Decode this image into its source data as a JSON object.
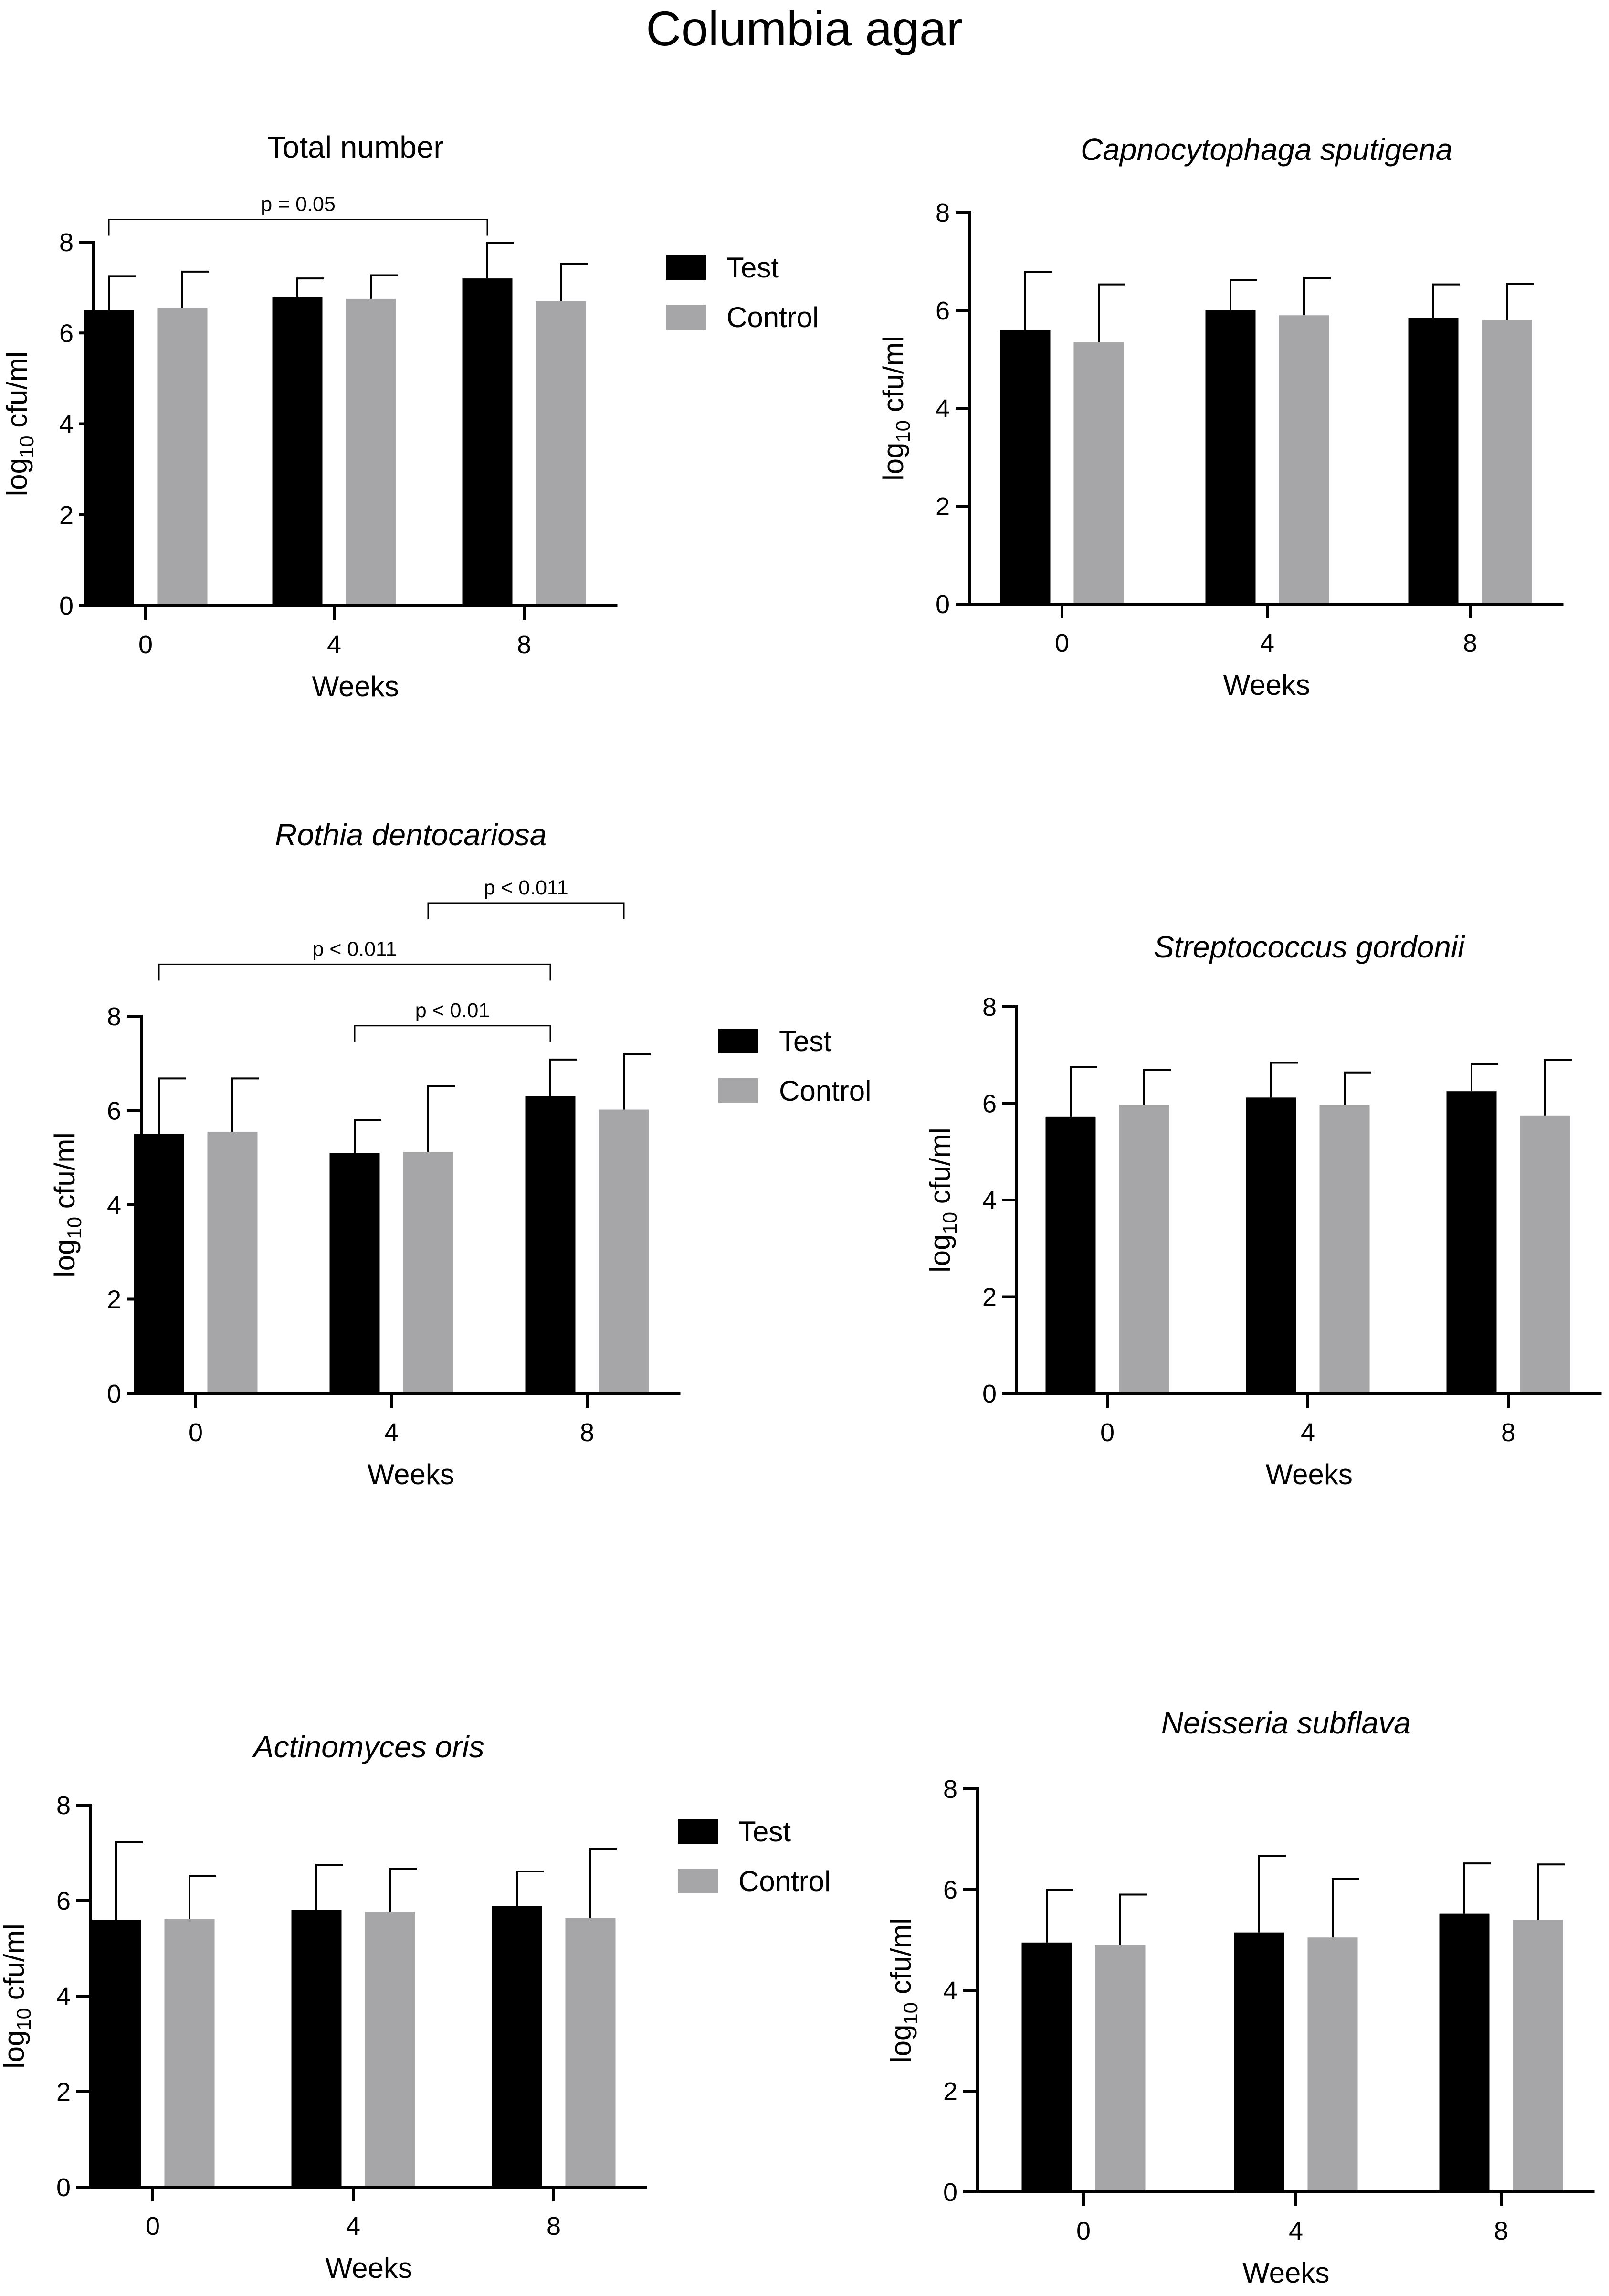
{
  "title": "Columbia agar",
  "colors": {
    "test": "#000000",
    "control": "#a6a6a8"
  },
  "chart_data": [
    {
      "type": "bar",
      "title": "Total number",
      "italic": false,
      "categories": [
        "0",
        "4",
        "8"
      ],
      "xlabel": "Weeks",
      "ylabel": "log10 cfu/ml",
      "ylim": [
        0,
        8
      ],
      "yticks": [
        0,
        2,
        4,
        6,
        8
      ],
      "legend": [
        "Test",
        "Control"
      ],
      "series": [
        {
          "name": "Test",
          "values": [
            6.5,
            6.8,
            7.2
          ],
          "errors": [
            0.75,
            0.4,
            0.78
          ]
        },
        {
          "name": "Control",
          "values": [
            6.55,
            6.75,
            6.7
          ],
          "errors": [
            0.8,
            0.52,
            0.82
          ]
        }
      ],
      "annotations": [
        {
          "label": "p = 0.05",
          "from": "0:Test",
          "to": "8:Test",
          "y": 8.5
        }
      ]
    },
    {
      "type": "bar",
      "title": "Capnocytophaga sputigena",
      "italic": true,
      "categories": [
        "0",
        "4",
        "8"
      ],
      "xlabel": "Weeks",
      "ylabel": "log10 cfu/ml",
      "ylim": [
        0,
        8
      ],
      "yticks": [
        0,
        2,
        4,
        6,
        8
      ],
      "legend": [],
      "series": [
        {
          "name": "Test",
          "values": [
            5.6,
            6.0,
            5.85
          ],
          "errors": [
            1.18,
            0.62,
            0.68
          ]
        },
        {
          "name": "Control",
          "values": [
            5.35,
            5.9,
            5.8
          ],
          "errors": [
            1.18,
            0.76,
            0.74
          ]
        }
      ],
      "annotations": []
    },
    {
      "type": "bar",
      "title": "Rothia dentocariosa",
      "italic": true,
      "categories": [
        "0",
        "4",
        "8"
      ],
      "xlabel": "Weeks",
      "ylabel": "log10 cfu/ml",
      "ylim": [
        0,
        8
      ],
      "yticks": [
        0,
        2,
        4,
        6,
        8
      ],
      "legend": [
        "Test",
        "Control"
      ],
      "series": [
        {
          "name": "Test",
          "values": [
            5.5,
            5.1,
            6.3
          ],
          "errors": [
            1.18,
            0.7,
            0.78
          ]
        },
        {
          "name": "Control",
          "values": [
            5.55,
            5.12,
            6.02
          ],
          "errors": [
            1.13,
            1.4,
            1.17
          ]
        }
      ],
      "annotations": [
        {
          "label": "p < 0.011",
          "from": "4:Control",
          "to": "8:Control",
          "y": 10.4
        },
        {
          "label": "p < 0.011",
          "from": "0:Test",
          "to": "8:Test",
          "y": 9.1
        },
        {
          "label": "p < 0.01",
          "from": "4:Test",
          "to": "8:Test",
          "y": 7.8
        }
      ]
    },
    {
      "type": "bar",
      "title": "Streptococcus gordonii",
      "italic": true,
      "categories": [
        "0",
        "4",
        "8"
      ],
      "xlabel": "Weeks",
      "ylabel": "log10 cfu/ml",
      "ylim": [
        0,
        8
      ],
      "yticks": [
        0,
        2,
        4,
        6,
        8
      ],
      "legend": [],
      "series": [
        {
          "name": "Test",
          "values": [
            5.72,
            6.12,
            6.25
          ],
          "errors": [
            1.03,
            0.72,
            0.56
          ]
        },
        {
          "name": "Control",
          "values": [
            5.97,
            5.97,
            5.75
          ],
          "errors": [
            0.72,
            0.67,
            1.15
          ]
        }
      ],
      "annotations": []
    },
    {
      "type": "bar",
      "title": "Actinomyces oris",
      "italic": true,
      "categories": [
        "0",
        "4",
        "8"
      ],
      "xlabel": "Weeks",
      "ylabel": "log10 cfu/ml",
      "ylim": [
        0,
        8
      ],
      "yticks": [
        0,
        2,
        4,
        6,
        8
      ],
      "legend": [
        "Test",
        "Control"
      ],
      "series": [
        {
          "name": "Test",
          "values": [
            5.6,
            5.8,
            5.88
          ],
          "errors": [
            1.62,
            0.95,
            0.73
          ]
        },
        {
          "name": "Control",
          "values": [
            5.62,
            5.77,
            5.63
          ],
          "errors": [
            0.9,
            0.9,
            1.45
          ]
        }
      ],
      "annotations": []
    },
    {
      "type": "bar",
      "title": "Neisseria subflava",
      "italic": true,
      "categories": [
        "0",
        "4",
        "8"
      ],
      "xlabel": "Weeks",
      "ylabel": "log10 cfu/ml",
      "ylim": [
        0,
        8
      ],
      "yticks": [
        0,
        2,
        4,
        6,
        8
      ],
      "legend": [],
      "series": [
        {
          "name": "Test",
          "values": [
            4.95,
            5.15,
            5.52
          ],
          "errors": [
            1.05,
            1.52,
            1.0
          ]
        },
        {
          "name": "Control",
          "values": [
            4.9,
            5.05,
            5.4
          ],
          "errors": [
            1.0,
            1.16,
            1.1
          ]
        }
      ],
      "annotations": []
    }
  ]
}
